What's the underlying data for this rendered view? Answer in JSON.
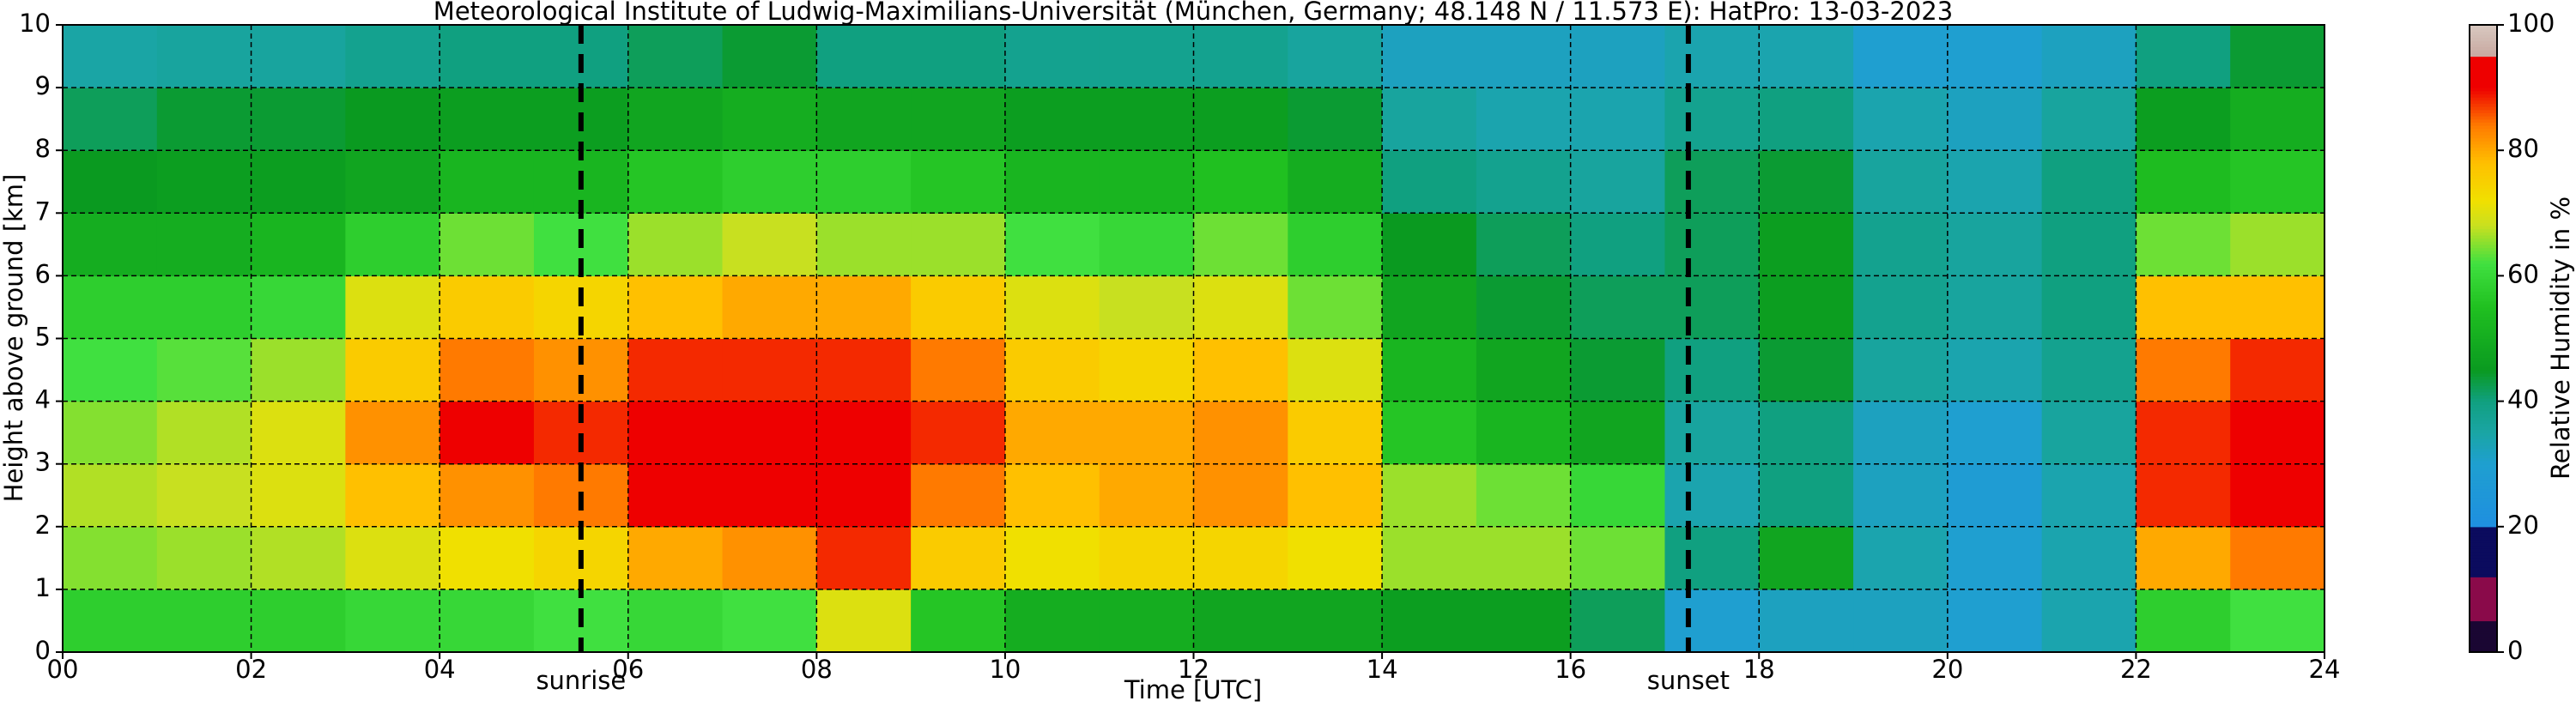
{
  "chart_data": {
    "type": "heatmap",
    "title": "Meteorological Institute of Ludwig-Maximilians-Universität (München, Germany; 48.148 N / 11.573 E):    HatPro: 13-03-2023",
    "x_label": "Time [UTC]",
    "y_label": "Height above ground [km]",
    "colorbar_label": "Relative Humidity in %",
    "xlim": [
      0,
      24
    ],
    "ylim": [
      0,
      10
    ],
    "xticks": [
      {
        "value": 0,
        "label": "00"
      },
      {
        "value": 2,
        "label": "02"
      },
      {
        "value": 4,
        "label": "04"
      },
      {
        "value": 6,
        "label": "06"
      },
      {
        "value": 8,
        "label": "08"
      },
      {
        "value": 10,
        "label": "10"
      },
      {
        "value": 12,
        "label": "12"
      },
      {
        "value": 14,
        "label": "14"
      },
      {
        "value": 16,
        "label": "16"
      },
      {
        "value": 18,
        "label": "18"
      },
      {
        "value": 20,
        "label": "20"
      },
      {
        "value": 22,
        "label": "22"
      },
      {
        "value": 24,
        "label": "24"
      }
    ],
    "yticks": [
      0,
      1,
      2,
      3,
      4,
      5,
      6,
      7,
      8,
      9,
      10
    ],
    "grid": true,
    "x_edges": [
      0,
      1,
      2,
      3,
      4,
      5,
      6,
      7,
      8,
      9,
      10,
      11,
      12,
      13,
      14,
      15,
      16,
      17,
      18,
      19,
      20,
      21,
      22,
      23,
      24
    ],
    "y_edges": [
      0,
      1,
      2,
      3,
      4,
      5,
      6,
      7,
      8,
      9,
      10
    ],
    "z": [
      [
        58,
        58,
        58,
        60,
        60,
        62,
        60,
        62,
        70,
        56,
        50,
        50,
        48,
        48,
        46,
        46,
        42,
        30,
        32,
        32,
        30,
        34,
        58,
        62
      ],
      [
        65,
        66,
        67,
        70,
        72,
        74,
        80,
        82,
        88,
        76,
        72,
        74,
        74,
        72,
        66,
        66,
        64,
        40,
        48,
        34,
        30,
        34,
        80,
        84
      ],
      [
        67,
        68,
        70,
        78,
        82,
        84,
        90,
        90,
        92,
        84,
        78,
        80,
        82,
        78,
        66,
        64,
        60,
        34,
        40,
        32,
        28,
        34,
        88,
        90
      ],
      [
        65,
        67,
        70,
        82,
        90,
        88,
        92,
        92,
        92,
        88,
        80,
        80,
        82,
        76,
        56,
        52,
        48,
        36,
        40,
        32,
        30,
        36,
        88,
        90
      ],
      [
        62,
        63,
        66,
        76,
        84,
        82,
        88,
        88,
        88,
        84,
        76,
        74,
        78,
        70,
        52,
        48,
        44,
        40,
        44,
        36,
        34,
        38,
        84,
        88
      ],
      [
        58,
        58,
        60,
        70,
        76,
        74,
        78,
        80,
        80,
        76,
        70,
        68,
        70,
        64,
        48,
        44,
        42,
        42,
        46,
        38,
        36,
        40,
        78,
        78
      ],
      [
        50,
        50,
        52,
        58,
        64,
        62,
        66,
        68,
        66,
        66,
        62,
        60,
        64,
        58,
        45,
        42,
        40,
        42,
        46,
        38,
        36,
        40,
        64,
        66
      ],
      [
        45,
        46,
        46,
        48,
        52,
        52,
        56,
        58,
        58,
        56,
        52,
        52,
        55,
        50,
        40,
        38,
        36,
        42,
        44,
        36,
        34,
        40,
        54,
        56
      ],
      [
        42,
        44,
        44,
        45,
        46,
        46,
        48,
        50,
        48,
        48,
        46,
        46,
        46,
        44,
        36,
        34,
        34,
        38,
        40,
        34,
        32,
        36,
        46,
        50
      ],
      [
        35,
        36,
        36,
        38,
        40,
        40,
        42,
        44,
        40,
        40,
        38,
        38,
        38,
        36,
        32,
        32,
        32,
        34,
        34,
        30,
        30,
        32,
        40,
        44
      ]
    ],
    "colorbar_ticks": [
      0,
      20,
      40,
      60,
      80,
      100
    ],
    "colorscale": [
      {
        "value": 0,
        "color": "#1a0633"
      },
      {
        "value": 5,
        "color": "#1a0633"
      },
      {
        "value": 5,
        "color": "#8a0a4a"
      },
      {
        "value": 12,
        "color": "#8a0a4a"
      },
      {
        "value": 12,
        "color": "#0b0b5e"
      },
      {
        "value": 20,
        "color": "#0b0b5e"
      },
      {
        "value": 20,
        "color": "#1f8fe0"
      },
      {
        "value": 30,
        "color": "#1f9fd0"
      },
      {
        "value": 35,
        "color": "#1aa5a5"
      },
      {
        "value": 40,
        "color": "#10a080"
      },
      {
        "value": 45,
        "color": "#0a9a20"
      },
      {
        "value": 55,
        "color": "#20c020"
      },
      {
        "value": 62,
        "color": "#40e040"
      },
      {
        "value": 68,
        "color": "#c8e020"
      },
      {
        "value": 72,
        "color": "#f0e000"
      },
      {
        "value": 78,
        "color": "#ffc000"
      },
      {
        "value": 84,
        "color": "#ff7a00"
      },
      {
        "value": 90,
        "color": "#ee0000"
      },
      {
        "value": 95,
        "color": "#ee0000"
      },
      {
        "value": 95,
        "color": "#c8a8a0"
      },
      {
        "value": 100,
        "color": "#d8c8c0"
      }
    ],
    "annotations": [
      {
        "text": "sunrise",
        "x": 5.5
      },
      {
        "text": "sunset",
        "x": 17.25
      }
    ]
  }
}
